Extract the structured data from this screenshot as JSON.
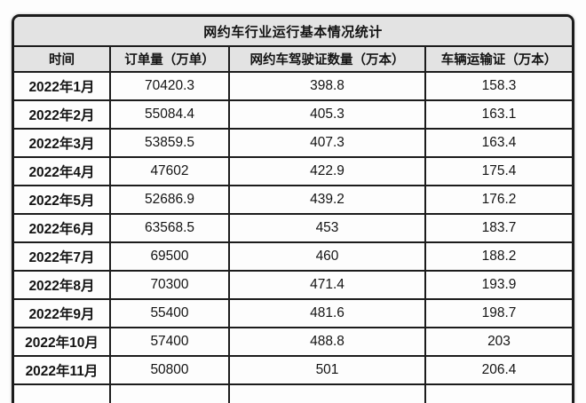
{
  "chart_data": {
    "type": "table",
    "title": "网约车行业运行基本情况统计",
    "columns": [
      "时间",
      "订单量（万单）",
      "网约车驾驶证数量（万本）",
      "车辆运输证（万本）"
    ],
    "rows": [
      [
        "2022年1月",
        "70420.3",
        "398.8",
        "158.3"
      ],
      [
        "2022年2月",
        "55084.4",
        "405.3",
        "163.1"
      ],
      [
        "2022年3月",
        "53859.5",
        "407.3",
        "163.4"
      ],
      [
        "2022年4月",
        "47602",
        "422.9",
        "175.4"
      ],
      [
        "2022年5月",
        "52686.9",
        "439.2",
        "176.2"
      ],
      [
        "2022年6月",
        "63568.5",
        "453",
        "183.7"
      ],
      [
        "2022年7月",
        "69500",
        "460",
        "188.2"
      ],
      [
        "2022年8月",
        "70300",
        "471.4",
        "193.9"
      ],
      [
        "2022年9月",
        "55400",
        "481.6",
        "198.7"
      ],
      [
        "2022年10月",
        "57400",
        "488.8",
        "203"
      ],
      [
        "2022年11月",
        "50800",
        "501",
        "206.4"
      ]
    ]
  },
  "colors": {
    "border": "#1c1c1c",
    "header_bg": "#e3e3e3",
    "cell_bg": "#fdfdfd",
    "text": "#141414"
  }
}
